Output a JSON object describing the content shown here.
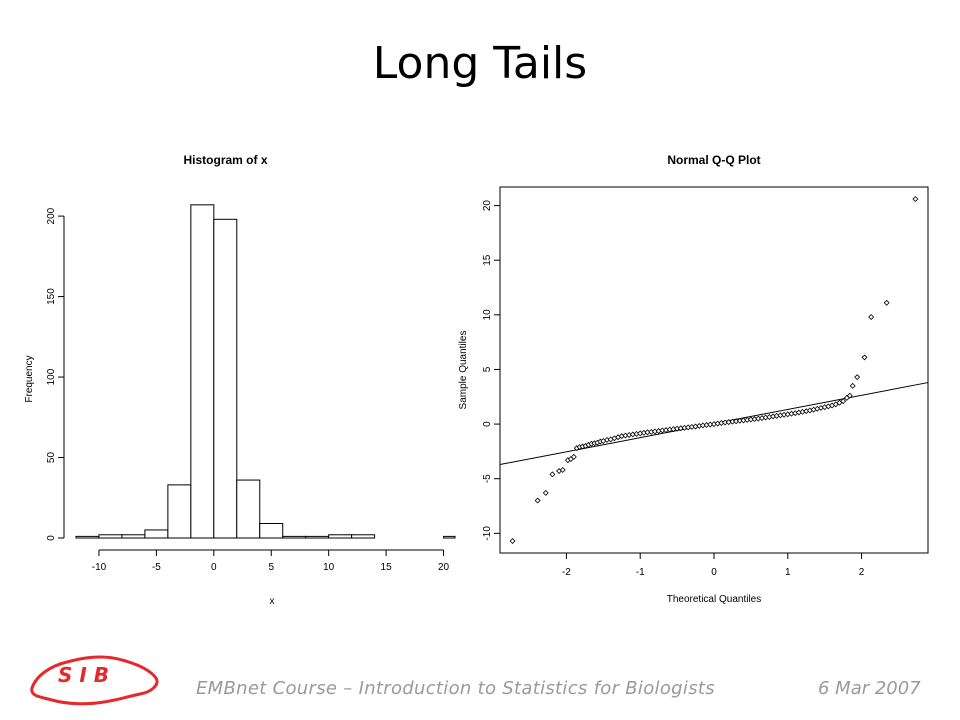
{
  "slide": {
    "title": "Long Tails",
    "footer": "EMBnet Course – Introduction to Statistics for Biologists",
    "date": "6 Mar 2007",
    "logo_text": "S I B",
    "logo_color": "#e8272a"
  },
  "chart_data": [
    {
      "type": "bar",
      "title": "Histogram of x",
      "xlabel": "x",
      "ylabel": "Frequency",
      "xlim": [
        -12,
        21
      ],
      "ylim": [
        0,
        210
      ],
      "xticks": [
        -10,
        -5,
        0,
        5,
        10,
        15,
        20
      ],
      "yticks": [
        0,
        50,
        100,
        150,
        200
      ],
      "bins": [
        {
          "x0": -12,
          "x1": -10,
          "count": 1
        },
        {
          "x0": -10,
          "x1": -8,
          "count": 2
        },
        {
          "x0": -8,
          "x1": -6,
          "count": 2
        },
        {
          "x0": -6,
          "x1": -4,
          "count": 5
        },
        {
          "x0": -4,
          "x1": -2,
          "count": 33
        },
        {
          "x0": -2,
          "x1": 0,
          "count": 207
        },
        {
          "x0": 0,
          "x1": 2,
          "count": 198
        },
        {
          "x0": 2,
          "x1": 4,
          "count": 36
        },
        {
          "x0": 4,
          "x1": 6,
          "count": 9
        },
        {
          "x0": 6,
          "x1": 8,
          "count": 1
        },
        {
          "x0": 8,
          "x1": 10,
          "count": 1
        },
        {
          "x0": 10,
          "x1": 12,
          "count": 2
        },
        {
          "x0": 12,
          "x1": 14,
          "count": 2
        },
        {
          "x0": 14,
          "x1": 16,
          "count": 0
        },
        {
          "x0": 16,
          "x1": 18,
          "count": 0
        },
        {
          "x0": 18,
          "x1": 20,
          "count": 0
        },
        {
          "x0": 20,
          "x1": 22,
          "count": 1
        }
      ]
    },
    {
      "type": "scatter",
      "title": "Normal Q-Q Plot",
      "xlabel": "Theoretical Quantiles",
      "ylabel": "Sample Quantiles",
      "xlim": [
        -2.9,
        2.9
      ],
      "ylim": [
        -11.8,
        21.7
      ],
      "xticks": [
        -2,
        -1,
        0,
        1,
        2
      ],
      "yticks": [
        -10,
        -5,
        0,
        5,
        10,
        15,
        20
      ],
      "qqline": {
        "x": [
          -2.9,
          2.9
        ],
        "y": [
          -3.7,
          3.8
        ]
      },
      "points": [
        {
          "x": -2.73,
          "y": -10.7
        },
        {
          "x": -2.39,
          "y": -7.0
        },
        {
          "x": -2.28,
          "y": -6.3
        },
        {
          "x": -2.19,
          "y": -4.6
        },
        {
          "x": -2.1,
          "y": -4.3
        },
        {
          "x": -2.05,
          "y": -4.2
        },
        {
          "x": -1.98,
          "y": -3.3
        },
        {
          "x": -1.94,
          "y": -3.2
        },
        {
          "x": -1.9,
          "y": -3.0
        },
        {
          "x": -1.86,
          "y": -2.2
        },
        {
          "x": -1.82,
          "y": -2.1
        },
        {
          "x": -1.78,
          "y": -2.05
        },
        {
          "x": -1.74,
          "y": -2.0
        },
        {
          "x": -1.7,
          "y": -1.9
        },
        {
          "x": -1.66,
          "y": -1.8
        },
        {
          "x": -1.62,
          "y": -1.75
        },
        {
          "x": -1.58,
          "y": -1.7
        },
        {
          "x": -1.54,
          "y": -1.6
        },
        {
          "x": -1.5,
          "y": -1.55
        },
        {
          "x": -1.45,
          "y": -1.45
        },
        {
          "x": -1.4,
          "y": -1.4
        },
        {
          "x": -1.35,
          "y": -1.3
        },
        {
          "x": -1.3,
          "y": -1.2
        },
        {
          "x": -1.25,
          "y": -1.1
        },
        {
          "x": -1.2,
          "y": -1.05
        },
        {
          "x": -1.15,
          "y": -1.0
        },
        {
          "x": -1.1,
          "y": -0.95
        },
        {
          "x": -1.05,
          "y": -0.9
        },
        {
          "x": -1.0,
          "y": -0.85
        },
        {
          "x": -0.95,
          "y": -0.8
        },
        {
          "x": -0.9,
          "y": -0.75
        },
        {
          "x": -0.85,
          "y": -0.72
        },
        {
          "x": -0.8,
          "y": -0.68
        },
        {
          "x": -0.75,
          "y": -0.63
        },
        {
          "x": -0.7,
          "y": -0.58
        },
        {
          "x": -0.65,
          "y": -0.55
        },
        {
          "x": -0.6,
          "y": -0.5
        },
        {
          "x": -0.55,
          "y": -0.46
        },
        {
          "x": -0.5,
          "y": -0.42
        },
        {
          "x": -0.45,
          "y": -0.38
        },
        {
          "x": -0.4,
          "y": -0.34
        },
        {
          "x": -0.35,
          "y": -0.3
        },
        {
          "x": -0.3,
          "y": -0.26
        },
        {
          "x": -0.25,
          "y": -0.22
        },
        {
          "x": -0.2,
          "y": -0.17
        },
        {
          "x": -0.15,
          "y": -0.12
        },
        {
          "x": -0.1,
          "y": -0.08
        },
        {
          "x": -0.05,
          "y": -0.04
        },
        {
          "x": 0.0,
          "y": 0.0
        },
        {
          "x": 0.05,
          "y": 0.05
        },
        {
          "x": 0.1,
          "y": 0.1
        },
        {
          "x": 0.15,
          "y": 0.14
        },
        {
          "x": 0.2,
          "y": 0.18
        },
        {
          "x": 0.25,
          "y": 0.22
        },
        {
          "x": 0.3,
          "y": 0.26
        },
        {
          "x": 0.35,
          "y": 0.3
        },
        {
          "x": 0.4,
          "y": 0.34
        },
        {
          "x": 0.45,
          "y": 0.38
        },
        {
          "x": 0.5,
          "y": 0.42
        },
        {
          "x": 0.55,
          "y": 0.46
        },
        {
          "x": 0.6,
          "y": 0.5
        },
        {
          "x": 0.65,
          "y": 0.55
        },
        {
          "x": 0.7,
          "y": 0.6
        },
        {
          "x": 0.75,
          "y": 0.65
        },
        {
          "x": 0.8,
          "y": 0.7
        },
        {
          "x": 0.85,
          "y": 0.75
        },
        {
          "x": 0.9,
          "y": 0.8
        },
        {
          "x": 0.95,
          "y": 0.85
        },
        {
          "x": 1.0,
          "y": 0.9
        },
        {
          "x": 1.05,
          "y": 0.95
        },
        {
          "x": 1.1,
          "y": 1.0
        },
        {
          "x": 1.15,
          "y": 1.06
        },
        {
          "x": 1.2,
          "y": 1.12
        },
        {
          "x": 1.25,
          "y": 1.18
        },
        {
          "x": 1.3,
          "y": 1.25
        },
        {
          "x": 1.35,
          "y": 1.32
        },
        {
          "x": 1.4,
          "y": 1.4
        },
        {
          "x": 1.45,
          "y": 1.48
        },
        {
          "x": 1.5,
          "y": 1.55
        },
        {
          "x": 1.55,
          "y": 1.62
        },
        {
          "x": 1.6,
          "y": 1.7
        },
        {
          "x": 1.65,
          "y": 1.8
        },
        {
          "x": 1.7,
          "y": 1.95
        },
        {
          "x": 1.75,
          "y": 2.1
        },
        {
          "x": 1.8,
          "y": 2.4
        },
        {
          "x": 1.84,
          "y": 2.6
        },
        {
          "x": 1.88,
          "y": 3.5
        },
        {
          "x": 1.94,
          "y": 4.3
        },
        {
          "x": 2.04,
          "y": 6.1
        },
        {
          "x": 2.13,
          "y": 9.8
        },
        {
          "x": 2.34,
          "y": 11.1
        },
        {
          "x": 2.73,
          "y": 20.6
        }
      ]
    }
  ]
}
